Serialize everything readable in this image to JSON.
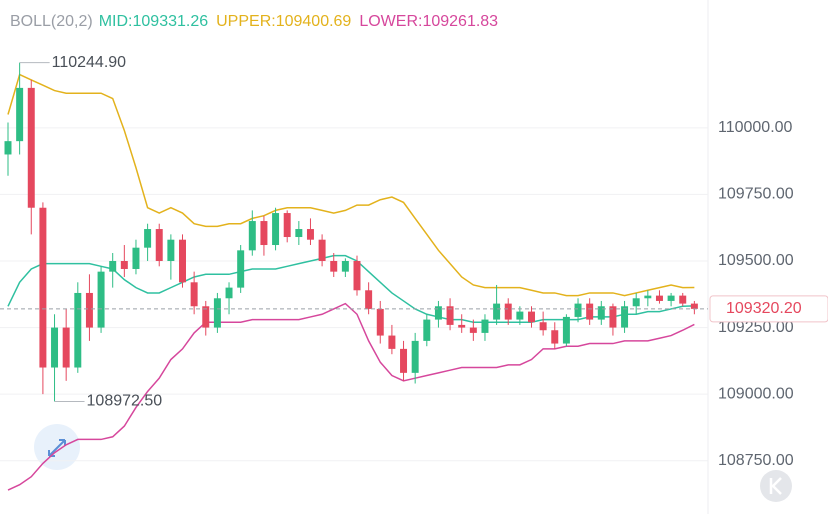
{
  "chart_data": {
    "type": "candlestick",
    "indicator": "BOLL(20,2)",
    "ylim": [
      108550,
      110480
    ],
    "yticks": [
      {
        "value": 108750,
        "label": "108750.00"
      },
      {
        "value": 109000,
        "label": "109000.00"
      },
      {
        "value": 109250,
        "label": "109250.00"
      },
      {
        "value": 109500,
        "label": "109500.00"
      },
      {
        "value": 109750,
        "label": "109750.00"
      },
      {
        "value": 110000,
        "label": "110000.00"
      }
    ],
    "grid": true,
    "up_color": "#2ebd85",
    "down_color": "#e5485e",
    "open": [
      109900,
      109950,
      110150,
      109700,
      109100,
      109250,
      109100,
      109380,
      109250,
      109460,
      109500,
      109470,
      109550,
      109620,
      109500,
      109580,
      109420,
      109330,
      109250,
      109360,
      109400,
      109540,
      109650,
      109560,
      109680,
      109590,
      109620,
      109580,
      109500,
      109460,
      109500,
      109390,
      109320,
      109220,
      109170,
      109080,
      109200,
      109280,
      109330,
      109260,
      109250,
      109230,
      109280,
      109340,
      109280,
      109310,
      109270,
      109240,
      109190,
      109290,
      109340,
      109280,
      109330,
      109250,
      109330,
      109360,
      109370,
      109350,
      109370,
      109340
    ],
    "high": [
      110020,
      110244.9,
      110180,
      109720,
      109300,
      109320,
      109420,
      109450,
      109480,
      109530,
      109560,
      109580,
      109640,
      109640,
      109600,
      109600,
      109460,
      109350,
      109380,
      109420,
      109560,
      109690,
      109670,
      109700,
      109690,
      109650,
      109660,
      109600,
      109530,
      109510,
      109520,
      109420,
      109350,
      109260,
      109200,
      109230,
      109300,
      109350,
      109360,
      109300,
      109280,
      109300,
      109410,
      109360,
      109330,
      109330,
      109310,
      109270,
      109300,
      109360,
      109360,
      109350,
      109340,
      109350,
      109380,
      109390,
      109390,
      109380,
      109380,
      109350
    ],
    "low": [
      109820,
      109900,
      109600,
      109000,
      108972.5,
      109050,
      109080,
      109200,
      109230,
      109400,
      109440,
      109450,
      109500,
      109480,
      109430,
      109400,
      109300,
      109220,
      109230,
      109300,
      109380,
      109520,
      109520,
      109540,
      109570,
      109560,
      109560,
      109480,
      109440,
      109440,
      109370,
      109300,
      109190,
      109150,
      109050,
      109040,
      109180,
      109250,
      109240,
      109230,
      109200,
      109200,
      109260,
      109260,
      109260,
      109250,
      109220,
      109170,
      109180,
      109270,
      109260,
      109260,
      109220,
      109230,
      109300,
      109330,
      109340,
      109330,
      109330,
      109300
    ],
    "close": [
      109950,
      110150,
      109700,
      109100,
      109250,
      109100,
      109380,
      109250,
      109460,
      109500,
      109470,
      109550,
      109620,
      109500,
      109580,
      109420,
      109330,
      109250,
      109360,
      109400,
      109540,
      109650,
      109560,
      109680,
      109590,
      109620,
      109580,
      109500,
      109460,
      109500,
      109390,
      109320,
      109220,
      109170,
      109080,
      109200,
      109280,
      109330,
      109260,
      109250,
      109230,
      109280,
      109340,
      109280,
      109310,
      109270,
      109240,
      109190,
      109290,
      109340,
      109280,
      109330,
      109250,
      109330,
      109360,
      109370,
      109350,
      109370,
      109340,
      109320.2
    ],
    "series": [
      {
        "name": "MID:109331.26",
        "color": "#2fc0a0",
        "values": [
          109330,
          109420,
          109470,
          109490,
          109490,
          109490,
          109490,
          109490,
          109480,
          109470,
          109430,
          109400,
          109380,
          109380,
          109400,
          109420,
          109440,
          109450,
          109450,
          109450,
          109460,
          109470,
          109470,
          109470,
          109480,
          109490,
          109500,
          109510,
          109520,
          109520,
          109500,
          109460,
          109420,
          109380,
          109350,
          109320,
          109300,
          109290,
          109280,
          109280,
          109270,
          109270,
          109270,
          109270,
          109270,
          109270,
          109280,
          109280,
          109280,
          109280,
          109290,
          109290,
          109290,
          109300,
          109300,
          109310,
          109310,
          109320,
          109330,
          109331.26
        ]
      },
      {
        "name": "UPPER:109400.69",
        "color": "#e3b21c",
        "values": [
          110050,
          110200,
          110180,
          110160,
          110140,
          110130,
          110130,
          110130,
          110130,
          110110,
          109990,
          109850,
          109700,
          109680,
          109700,
          109680,
          109640,
          109630,
          109630,
          109640,
          109640,
          109660,
          109670,
          109690,
          109700,
          109700,
          109700,
          109690,
          109680,
          109690,
          109710,
          109710,
          109730,
          109740,
          109720,
          109660,
          109600,
          109540,
          109490,
          109440,
          109410,
          109400,
          109400,
          109400,
          109400,
          109390,
          109380,
          109380,
          109370,
          109370,
          109380,
          109380,
          109380,
          109370,
          109380,
          109390,
          109400,
          109410,
          109400,
          109400.69
        ]
      },
      {
        "name": "LOWER:109261.83",
        "color": "#d6479c",
        "values": [
          108640,
          108660,
          108690,
          108740,
          108780,
          108810,
          108830,
          108830,
          108830,
          108840,
          108880,
          108950,
          109010,
          109060,
          109130,
          109170,
          109230,
          109270,
          109270,
          109270,
          109270,
          109280,
          109280,
          109280,
          109280,
          109280,
          109290,
          109300,
          109320,
          109340,
          109300,
          109200,
          109120,
          109070,
          109050,
          109060,
          109070,
          109080,
          109090,
          109100,
          109100,
          109100,
          109100,
          109110,
          109110,
          109130,
          109170,
          109170,
          109180,
          109180,
          109190,
          109190,
          109190,
          109200,
          109200,
          109200,
          109210,
          109220,
          109240,
          109261.83
        ]
      }
    ],
    "last_price": {
      "value": 109320.2,
      "label": "109320.20"
    },
    "annotations": [
      {
        "value": 110244.9,
        "label": "110244.90"
      },
      {
        "value": 108972.5,
        "label": "108972.50"
      }
    ]
  }
}
